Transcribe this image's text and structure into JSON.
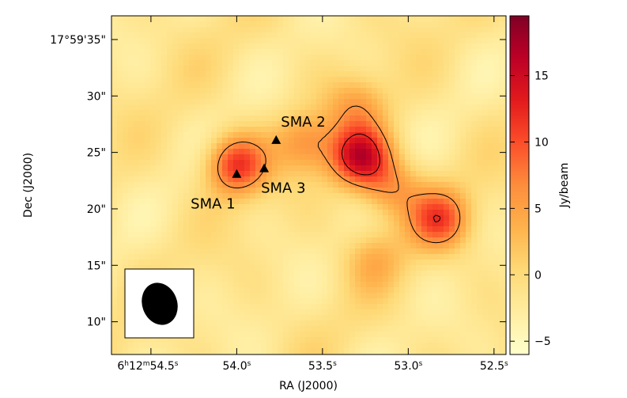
{
  "chart_data": {
    "type": "heatmap",
    "title": "",
    "xlabel": "RA (J2000)",
    "ylabel": "Dec (J2000)",
    "x_ticks": [
      {
        "label": "6h12m54.5s",
        "parts": {
          "h": "6",
          "m": "12",
          "s": "54.5"
        },
        "ra_seconds": 54.5
      },
      {
        "label": "54.0s",
        "ra_seconds": 54.0
      },
      {
        "label": "53.5s",
        "ra_seconds": 53.5
      },
      {
        "label": "53.0s",
        "ra_seconds": 53.0
      },
      {
        "label": "52.5s",
        "ra_seconds": 52.5
      }
    ],
    "x_range_seconds": [
      54.73,
      52.43
    ],
    "y_ticks": [
      {
        "label": "17°59'35\"",
        "dec_arcsec": 35
      },
      {
        "label": "30\"",
        "dec_arcsec": 30
      },
      {
        "label": "25\"",
        "dec_arcsec": 25
      },
      {
        "label": "20\"",
        "dec_arcsec": 20
      },
      {
        "label": "15\"",
        "dec_arcsec": 15
      },
      {
        "label": "10\"",
        "dec_arcsec": 10
      }
    ],
    "y_range_arcsec": [
      7.1,
      37.1
    ],
    "colorbar": {
      "label": "Jy/beam",
      "range": [
        -6.0,
        19.5
      ],
      "ticks": [
        {
          "value": 15,
          "label": "15"
        },
        {
          "value": 10,
          "label": "10"
        },
        {
          "value": 5,
          "label": "5"
        },
        {
          "value": 0,
          "label": "0"
        },
        {
          "value": -5,
          "label": "−5"
        }
      ],
      "colormap": [
        "#ffffcc",
        "#ffeda0",
        "#fed976",
        "#feb24c",
        "#fd8d3c",
        "#fc4e2a",
        "#e31a1c",
        "#bd0026",
        "#800026"
      ]
    },
    "sources": [
      {
        "name": "SMA 1",
        "ra_s": 54.0,
        "dec_arcsec": 23.1
      },
      {
        "name": "SMA 2",
        "ra_s": 53.77,
        "dec_arcsec": 26.1
      },
      {
        "name": "SMA 3",
        "ra_s": 53.84,
        "dec_arcsec": 23.6
      }
    ],
    "emission_peaks": [
      {
        "ra_s": 54.0,
        "dec_arcsec": 23.9,
        "amp_jy": 13.0
      },
      {
        "ra_s": 53.28,
        "dec_arcsec": 24.6,
        "amp_jy": 16.5
      },
      {
        "ra_s": 53.6,
        "dec_arcsec": 25.9,
        "amp_jy": 7.0
      },
      {
        "ra_s": 52.82,
        "dec_arcsec": 19.1,
        "amp_jy": 11.0
      },
      {
        "ra_s": 53.1,
        "dec_arcsec": 21.8,
        "amp_jy": 7.0
      },
      {
        "ra_s": 53.3,
        "dec_arcsec": 29.1,
        "amp_jy": 5.5
      },
      {
        "ra_s": 53.2,
        "dec_arcsec": 15.6,
        "amp_jy": 4.5
      }
    ],
    "contour_levels_jy": [
      6,
      12
    ],
    "beam": {
      "shape": "ellipse",
      "major_arcsec": 3.8,
      "minor_arcsec": 3.1,
      "pa_deg": -20
    }
  }
}
